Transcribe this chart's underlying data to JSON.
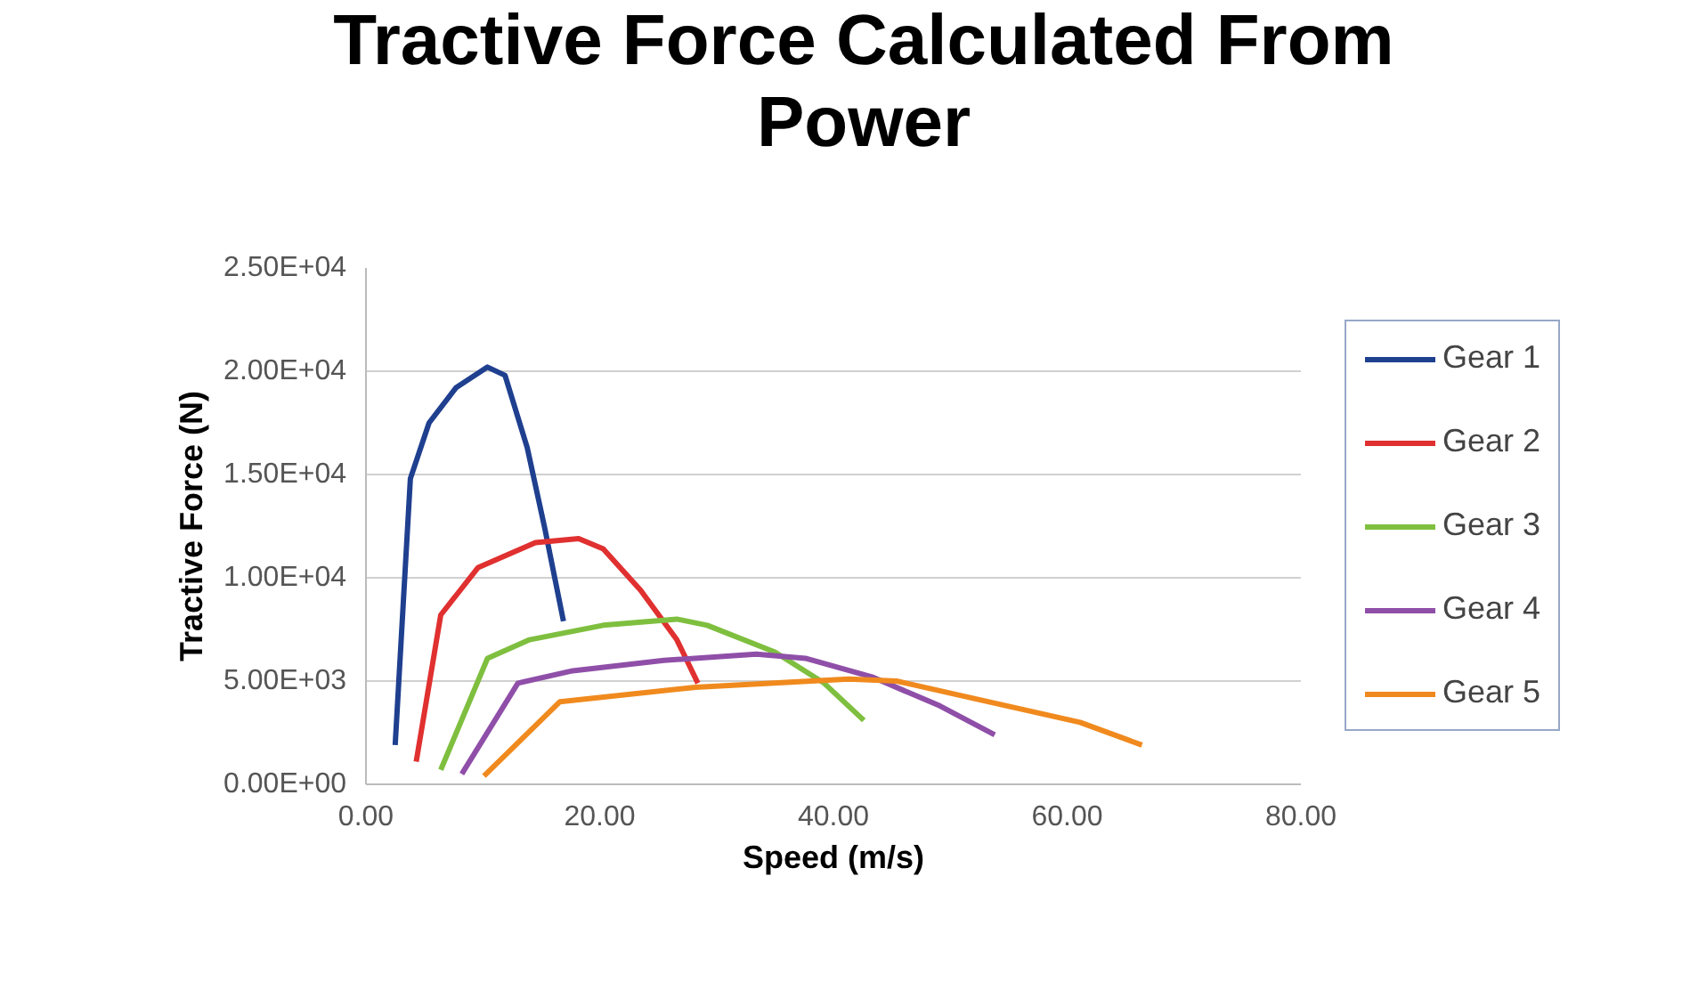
{
  "chart_data": {
    "type": "line",
    "title": "Tractive Force Calculated From Power",
    "xlabel": "Speed (m/s)",
    "ylabel": "Tractive Force (N)",
    "xlim": [
      0,
      80
    ],
    "xticks": [
      {
        "value": 0,
        "label": "0.00"
      },
      {
        "value": 20,
        "label": "20.00"
      },
      {
        "value": 40,
        "label": "40.00"
      },
      {
        "value": 60,
        "label": "60.00"
      },
      {
        "value": 80,
        "label": "80.00"
      }
    ],
    "ylim": [
      0,
      25000
    ],
    "yticks": [
      {
        "value": 0,
        "label": "0.00E+00"
      },
      {
        "value": 5000,
        "label": "5.00E+03"
      },
      {
        "value": 10000,
        "label": "1.00E+04"
      },
      {
        "value": 15000,
        "label": "1.50E+04"
      },
      {
        "value": 20000,
        "label": "2.00E+04"
      },
      {
        "value": 25000,
        "label": "2.50E+04"
      }
    ],
    "grid": "y",
    "legend": "right",
    "marker": "none",
    "line_style": "solid",
    "series": [
      {
        "name": "Gear 1",
        "color": "#1f3f8f",
        "x": [
          2.5,
          3.8,
          5.4,
          7.7,
          10.4,
          11.9,
          13.8,
          15.3,
          16.9
        ],
        "values": [
          1900,
          14800,
          17500,
          19200,
          20200,
          19800,
          16300,
          12400,
          7900
        ]
      },
      {
        "name": "Gear 2",
        "color": "#e03030",
        "x": [
          4.3,
          6.4,
          9.6,
          14.5,
          18.2,
          20.3,
          23.5,
          26.6,
          28.4
        ],
        "values": [
          1100,
          8200,
          10500,
          11700,
          11900,
          11400,
          9400,
          7000,
          4900
        ]
      },
      {
        "name": "Gear 3",
        "color": "#7fbf3f",
        "x": [
          6.4,
          10.4,
          14.0,
          20.3,
          26.6,
          29.2,
          35.0,
          39.2,
          42.6
        ],
        "values": [
          700,
          6100,
          7000,
          7700,
          8000,
          7700,
          6400,
          4900,
          3100
        ]
      },
      {
        "name": "Gear 4",
        "color": "#8f4fa8",
        "x": [
          8.2,
          13.0,
          17.7,
          25.5,
          33.4,
          37.6,
          43.3,
          49.1,
          53.8
        ],
        "values": [
          500,
          4900,
          5500,
          6000,
          6300,
          6100,
          5200,
          3800,
          2400
        ]
      },
      {
        "name": "Gear 5",
        "color": "#f08a1e",
        "x": [
          10.1,
          16.6,
          28.2,
          41.3,
          45.4,
          51.7,
          61.1,
          66.4
        ],
        "values": [
          400,
          4000,
          4700,
          5100,
          5000,
          4200,
          3000,
          1900
        ]
      }
    ]
  }
}
